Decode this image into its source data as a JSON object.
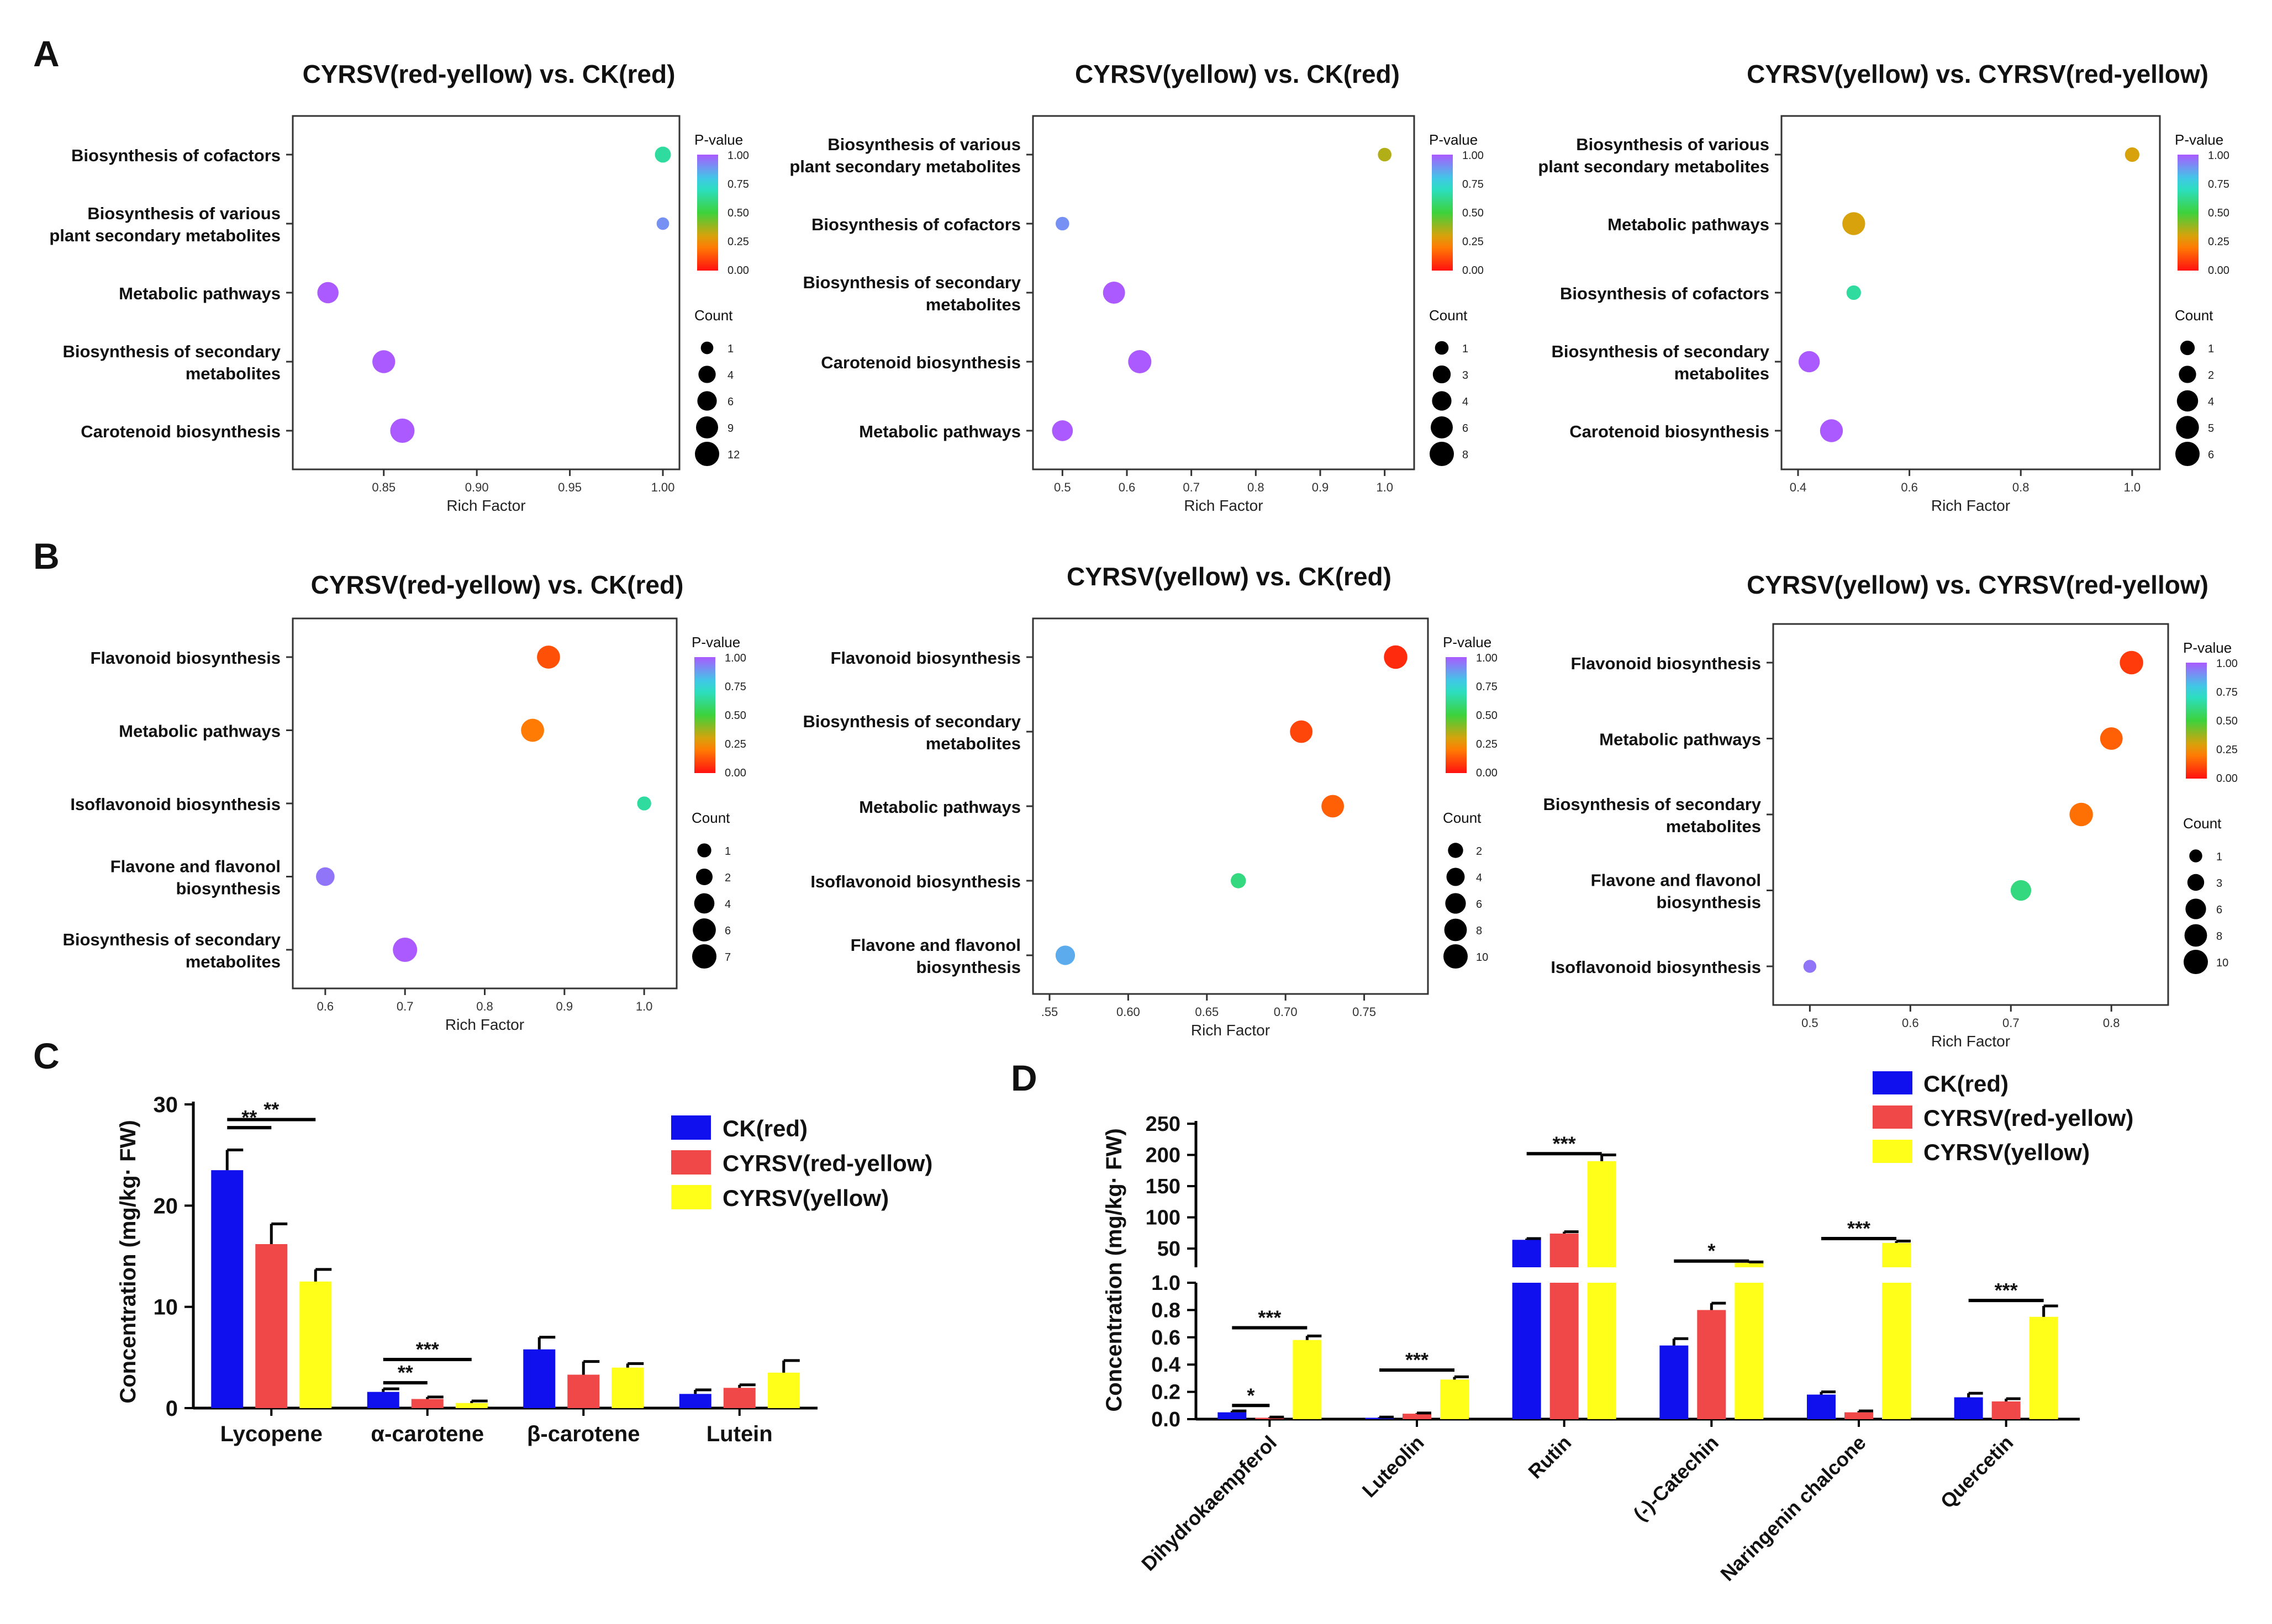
{
  "panel_labels": [
    "A",
    "B",
    "C",
    "D"
  ],
  "legend_pvalue_title": "P-value",
  "legend_count_title": "Count",
  "pvalue_ticks": [
    "1.00",
    "0.75",
    "0.50",
    "0.25",
    "0.00"
  ],
  "chart_data": [
    {
      "id": "A1",
      "type": "scatter",
      "panel": "A",
      "title": "CYRSV(red-yellow) vs. CK(red)",
      "xlabel": "Rich Factor",
      "xlim": [
        0.81,
        1.0
      ],
      "xticks": [
        0.85,
        0.9,
        0.95,
        1.0
      ],
      "xtick_labels": [
        "0.85",
        "0.90",
        "0.95",
        "1.00"
      ],
      "categories": [
        "Biosynthesis of cofactors",
        "Biosynthesis of various\nplant secondary metabolites",
        "Metabolic pathways",
        "Biosynthesis of secondary\nmetabolites",
        "Carotenoid biosynthesis"
      ],
      "points": [
        {
          "rich": 1.0,
          "pvalue": 0.65,
          "count": 3
        },
        {
          "rich": 1.0,
          "pvalue": 0.9,
          "count": 1
        },
        {
          "rich": 0.82,
          "pvalue": 1.0,
          "count": 8
        },
        {
          "rich": 0.85,
          "pvalue": 1.0,
          "count": 10
        },
        {
          "rich": 0.86,
          "pvalue": 1.0,
          "count": 12
        }
      ],
      "count_legend": [
        1,
        4,
        6,
        9,
        12
      ]
    },
    {
      "id": "A2",
      "type": "scatter",
      "panel": "A",
      "title": "CYRSV(yellow) vs. CK(red)",
      "xlabel": "Rich Factor",
      "xlim": [
        0.48,
        1.02
      ],
      "xticks": [
        0.5,
        0.6,
        0.7,
        0.8,
        0.9,
        1.0
      ],
      "xtick_labels": [
        "0.5",
        "0.6",
        "0.7",
        "0.8",
        "0.9",
        "1.0"
      ],
      "categories": [
        "Biosynthesis of various\nplant secondary metabolites",
        "Biosynthesis of cofactors",
        "Biosynthesis of secondary\nmetabolites",
        "Carotenoid biosynthesis",
        "Metabolic pathways"
      ],
      "points": [
        {
          "rich": 1.0,
          "pvalue": 0.35,
          "count": 1
        },
        {
          "rich": 0.5,
          "pvalue": 0.9,
          "count": 1
        },
        {
          "rich": 0.58,
          "pvalue": 1.0,
          "count": 6
        },
        {
          "rich": 0.62,
          "pvalue": 1.0,
          "count": 7
        },
        {
          "rich": 0.5,
          "pvalue": 1.0,
          "count": 5
        }
      ],
      "count_legend": [
        1,
        3,
        4,
        6,
        8
      ]
    },
    {
      "id": "A3",
      "type": "scatter",
      "panel": "A",
      "title": "CYRSV(yellow) vs. CYRSV(red-yellow)",
      "xlabel": "Rich Factor",
      "xlim": [
        0.4,
        1.02
      ],
      "xticks": [
        0.4,
        0.6,
        0.8,
        1.0
      ],
      "xtick_labels": [
        "0.4",
        "0.6",
        "0.8",
        "1.0"
      ],
      "categories": [
        "Biosynthesis of various\nplant secondary metabolites",
        "Metabolic pathways",
        "Biosynthesis of cofactors",
        "Biosynthesis of secondary\nmetabolites",
        "Carotenoid biosynthesis"
      ],
      "points": [
        {
          "rich": 1.0,
          "pvalue": 0.3,
          "count": 1
        },
        {
          "rich": 0.5,
          "pvalue": 0.3,
          "count": 5
        },
        {
          "rich": 0.5,
          "pvalue": 0.65,
          "count": 1
        },
        {
          "rich": 0.42,
          "pvalue": 1.0,
          "count": 4
        },
        {
          "rich": 0.46,
          "pvalue": 1.0,
          "count": 5
        }
      ],
      "count_legend": [
        1,
        2,
        4,
        5,
        6
      ]
    },
    {
      "id": "B1",
      "type": "scatter",
      "panel": "B",
      "title": "CYRSV(red-yellow) vs. CK(red)",
      "xlabel": "Rich Factor",
      "xlim": [
        0.58,
        1.02
      ],
      "xticks": [
        0.6,
        0.7,
        0.8,
        0.9,
        1.0
      ],
      "xtick_labels": [
        "0.6",
        "0.7",
        "0.8",
        "0.9",
        "1.0"
      ],
      "categories": [
        "Flavonoid biosynthesis",
        "Metabolic pathways",
        "Isoflavonoid biosynthesis",
        "Flavone and flavonol\nbiosynthesis",
        "Biosynthesis of secondary\nmetabolites"
      ],
      "points": [
        {
          "rich": 0.88,
          "pvalue": 0.12,
          "count": 6
        },
        {
          "rich": 0.86,
          "pvalue": 0.2,
          "count": 6
        },
        {
          "rich": 1.0,
          "pvalue": 0.65,
          "count": 1
        },
        {
          "rich": 0.6,
          "pvalue": 0.95,
          "count": 3
        },
        {
          "rich": 0.7,
          "pvalue": 1.0,
          "count": 7
        }
      ],
      "count_legend": [
        1,
        2,
        4,
        6,
        7
      ]
    },
    {
      "id": "B2",
      "type": "scatter",
      "panel": "B",
      "title": "CYRSV(yellow) vs. CK(red)",
      "xlabel": "Rich Factor",
      "xlim": [
        0.55,
        0.78
      ],
      "xticks": [
        0.55,
        0.6,
        0.65,
        0.7,
        0.75
      ],
      "xtick_labels": [
        ".55",
        "0.60",
        "0.65",
        "0.70",
        "0.75"
      ],
      "categories": [
        "Flavonoid biosynthesis",
        "Biosynthesis of secondary\nmetabolites",
        "Metabolic pathways",
        "Isoflavonoid biosynthesis",
        "Flavone and flavonol\nbiosynthesis"
      ],
      "points": [
        {
          "rich": 0.77,
          "pvalue": 0.05,
          "count": 9
        },
        {
          "rich": 0.71,
          "pvalue": 0.1,
          "count": 8
        },
        {
          "rich": 0.73,
          "pvalue": 0.15,
          "count": 8
        },
        {
          "rich": 0.67,
          "pvalue": 0.6,
          "count": 2
        },
        {
          "rich": 0.56,
          "pvalue": 0.85,
          "count": 5
        }
      ],
      "count_legend": [
        2,
        4,
        6,
        8,
        10
      ]
    },
    {
      "id": "B3",
      "type": "scatter",
      "panel": "B",
      "title": "CYRSV(yellow) vs. CYRSV(red-yellow)",
      "xlabel": "Rich Factor",
      "xlim": [
        0.48,
        0.84
      ],
      "xticks": [
        0.5,
        0.6,
        0.7,
        0.8
      ],
      "xtick_labels": [
        "0.5",
        "0.6",
        "0.7",
        "0.8"
      ],
      "categories": [
        "Flavonoid biosynthesis",
        "Metabolic pathways",
        "Biosynthesis of secondary\nmetabolites",
        "Flavone and flavonol\nbiosynthesis",
        "Isoflavonoid biosynthesis"
      ],
      "points": [
        {
          "rich": 0.82,
          "pvalue": 0.08,
          "count": 9
        },
        {
          "rich": 0.8,
          "pvalue": 0.15,
          "count": 8
        },
        {
          "rich": 0.77,
          "pvalue": 0.18,
          "count": 9
        },
        {
          "rich": 0.71,
          "pvalue": 0.6,
          "count": 6
        },
        {
          "rich": 0.5,
          "pvalue": 0.95,
          "count": 1
        }
      ],
      "count_legend": [
        1,
        3,
        6,
        8,
        10
      ]
    },
    {
      "id": "C",
      "type": "bar",
      "panel": "C",
      "ylabel": "Concentration (mg/kg· FW)",
      "ylim": [
        0,
        30
      ],
      "yticks": [
        0,
        10,
        20,
        30
      ],
      "categories": [
        "Lycopene",
        "α-carotene",
        "β-carotene",
        "Lutein"
      ],
      "series": [
        {
          "name": "CK(red)",
          "color": "#1010ee",
          "values": [
            23.5,
            1.6,
            5.8,
            1.4
          ],
          "errors": [
            2.0,
            0.3,
            1.2,
            0.4
          ]
        },
        {
          "name": "CYRSV(red-yellow)",
          "color": "#f04848",
          "values": [
            16.2,
            0.9,
            3.3,
            2.0
          ],
          "errors": [
            2.0,
            0.2,
            1.3,
            0.3
          ]
        },
        {
          "name": "CYRSV(yellow)",
          "color": "#ffff1a",
          "values": [
            12.5,
            0.5,
            4.0,
            3.5
          ],
          "errors": [
            1.2,
            0.2,
            0.4,
            1.2
          ]
        }
      ],
      "significance": [
        {
          "category": 0,
          "from": 0,
          "to": 1,
          "label": "**",
          "y": 27.7
        },
        {
          "category": 0,
          "from": 0,
          "to": 2,
          "label": "**",
          "y": 28.5
        },
        {
          "category": 1,
          "from": 0,
          "to": 1,
          "label": "**",
          "y": 2.5
        },
        {
          "category": 1,
          "from": 0,
          "to": 2,
          "label": "***",
          "y": 4.8
        }
      ]
    },
    {
      "id": "D",
      "type": "bar",
      "panel": "D",
      "ylabel": "Concentration (mg/kg· FW)",
      "y_axis_break": true,
      "lower_ylim": [
        0,
        1.0
      ],
      "lower_yticks": [
        0.0,
        0.2,
        0.4,
        0.6,
        0.8,
        1.0
      ],
      "lower_ytick_labels": [
        "0.0",
        "0.2",
        "0.4",
        "0.6",
        "0.8",
        "1.0"
      ],
      "upper_ylim": [
        20,
        250
      ],
      "upper_yticks": [
        50,
        100,
        150,
        200,
        250
      ],
      "upper_ytick_labels": [
        "50",
        "100",
        "150",
        "200",
        "250"
      ],
      "categories": [
        "Dihydrokaempferol",
        "Luteolin",
        "Rutin",
        "(-)-Catechin",
        "Naringenin chalcone",
        "Quercetin"
      ],
      "series": [
        {
          "name": "CK(red)",
          "color": "#1010ee",
          "values": [
            0.05,
            0.01,
            64,
            0.54,
            0.18,
            0.16
          ],
          "errors": [
            0.01,
            0.005,
            2,
            0.05,
            0.02,
            0.03
          ]
        },
        {
          "name": "CYRSV(red-yellow)",
          "color": "#f04848",
          "values": [
            0.01,
            0.04,
            74,
            0.8,
            0.05,
            0.13
          ],
          "errors": [
            0.005,
            0.005,
            3,
            0.05,
            0.01,
            0.02
          ]
        },
        {
          "name": "CYRSV(yellow)",
          "color": "#ffff1a",
          "values": [
            0.58,
            0.29,
            190,
            27,
            59,
            0.75
          ],
          "errors": [
            0.03,
            0.02,
            10,
            1.5,
            3,
            0.08
          ]
        }
      ],
      "significance": [
        {
          "category": 0,
          "from": 0,
          "to": 1,
          "label": "*",
          "y": 0.1
        },
        {
          "category": 0,
          "from": 0,
          "to": 2,
          "label": "***",
          "y": 0.67
        },
        {
          "category": 1,
          "from": 0,
          "to": 2,
          "label": "***",
          "y": 0.36
        },
        {
          "category": 2,
          "from": 0,
          "to": 2,
          "label": "***",
          "y": 202
        },
        {
          "category": 3,
          "from": 0,
          "to": 2,
          "label": "*",
          "y": 30
        },
        {
          "category": 4,
          "from": 0,
          "to": 2,
          "label": "***",
          "y": 66
        },
        {
          "category": 5,
          "from": 0,
          "to": 2,
          "label": "***",
          "y": 0.87
        }
      ]
    }
  ]
}
